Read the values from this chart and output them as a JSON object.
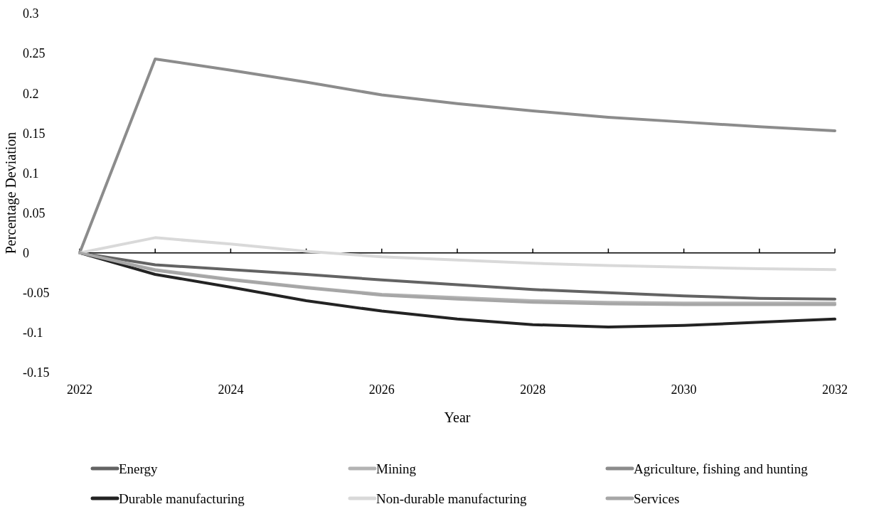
{
  "chart_data": {
    "type": "line",
    "xlabel": "Year",
    "ylabel": "Percentage Deviation",
    "x": [
      2022,
      2023,
      2024,
      2025,
      2026,
      2027,
      2028,
      2029,
      2030,
      2031,
      2032
    ],
    "xlim": [
      2022,
      2032
    ],
    "xticks": [
      2022,
      2024,
      2026,
      2028,
      2030,
      2032
    ],
    "ylim": [
      -0.15,
      0.3
    ],
    "yticks": [
      {
        "value": -0.15,
        "label": "-0.15"
      },
      {
        "value": -0.1,
        "label": "-0.1"
      },
      {
        "value": -0.05,
        "label": "-0.05"
      },
      0,
      0.05,
      0.1,
      0.15,
      0.2,
      0.25,
      0.3
    ],
    "legend": "bottom",
    "marker": "none",
    "line_style": "solid",
    "series": [
      {
        "name": "Energy",
        "color": "#636363",
        "values": [
          0,
          -0.015,
          -0.021,
          -0.027,
          -0.034,
          -0.04,
          -0.046,
          -0.05,
          -0.054,
          -0.057,
          -0.058
        ]
      },
      {
        "name": "Mining",
        "color": "#b3b3b3",
        "values": [
          0,
          -0.021,
          -0.033,
          -0.043,
          -0.052,
          -0.056,
          -0.06,
          -0.062,
          -0.063,
          -0.063,
          -0.063
        ]
      },
      {
        "name": "Agriculture, fishing and hunting",
        "color": "#8c8c8c",
        "values": [
          0,
          0.243,
          0.229,
          0.214,
          0.198,
          0.187,
          0.178,
          0.17,
          0.164,
          0.158,
          0.153
        ]
      },
      {
        "name": "Durable manufacturing",
        "color": "#232323",
        "values": [
          0,
          -0.027,
          -0.043,
          -0.06,
          -0.073,
          -0.083,
          -0.09,
          -0.093,
          -0.091,
          -0.087,
          -0.083
        ]
      },
      {
        "name": "Non-durable manufacturing",
        "color": "#d9d9d9",
        "values": [
          0,
          0.019,
          0.011,
          0.002,
          -0.005,
          -0.009,
          -0.013,
          -0.016,
          -0.018,
          -0.02,
          -0.021
        ]
      },
      {
        "name": "Services",
        "color": "#a6a6a6",
        "values": [
          0,
          -0.022,
          -0.034,
          -0.044,
          -0.053,
          -0.058,
          -0.062,
          -0.064,
          -0.065,
          -0.065,
          -0.065
        ]
      }
    ]
  }
}
